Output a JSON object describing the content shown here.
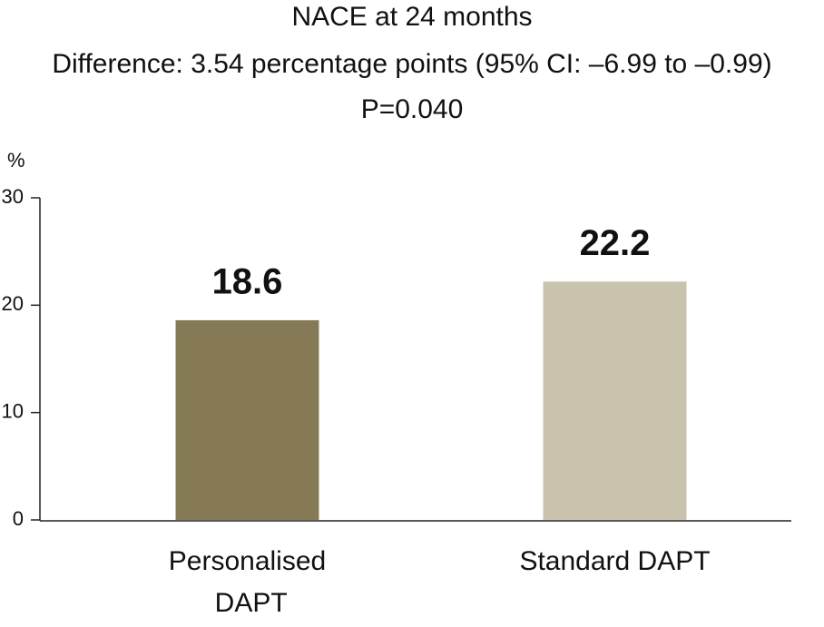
{
  "chart_data": {
    "type": "bar",
    "title": "NACE at 24 months",
    "subtitle": [
      "Difference: 3.54 percentage points (95% CI: –6.99 to –0.99)",
      "P=0.040"
    ],
    "y_label": "%",
    "categories": [
      "Personalised DAPT",
      "Standard DAPT"
    ],
    "values": [
      18.6,
      22.2
    ],
    "colors": [
      "#857a55",
      "#c9c3ae"
    ],
    "ylim": [
      0,
      30
    ],
    "yticks": [
      0,
      10,
      20,
      30
    ],
    "grid": false
  }
}
